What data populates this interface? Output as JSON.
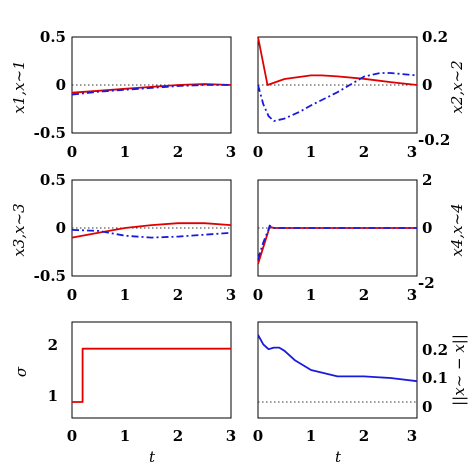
{
  "chart_data": [
    {
      "type": "line",
      "ylabel": "x1,x~1",
      "xlim": [
        0,
        3
      ],
      "ylim": [
        -0.5,
        0.5
      ],
      "xticks": [
        "0",
        "1",
        "2",
        "3"
      ],
      "yticks": [
        "0.5",
        "0",
        "-0.5"
      ],
      "series": [
        {
          "color": "#e00000",
          "dash": "solid",
          "x": [
            0,
            0.5,
            1,
            1.5,
            2,
            2.5,
            3
          ],
          "y": [
            -0.08,
            -0.06,
            -0.04,
            -0.02,
            0.0,
            0.01,
            0.0
          ]
        },
        {
          "color": "#1a1adf",
          "dash": "dashdot",
          "x": [
            0,
            0.5,
            1,
            1.5,
            2,
            2.5,
            3
          ],
          "y": [
            -0.1,
            -0.07,
            -0.05,
            -0.03,
            -0.01,
            0.0,
            0.0
          ]
        }
      ]
    },
    {
      "type": "line",
      "ylabel": "x2,x~2",
      "xlim": [
        0,
        3
      ],
      "ylim": [
        -0.2,
        0.2
      ],
      "xticks": [
        "0",
        "1",
        "2",
        "3"
      ],
      "yticks": [
        "0.2",
        "0",
        "-0.2"
      ],
      "series": [
        {
          "color": "#e00000",
          "dash": "solid",
          "x": [
            0,
            0.18,
            0.5,
            1,
            1.2,
            1.5,
            2,
            2.5,
            3
          ],
          "y": [
            0.2,
            0.0,
            0.025,
            0.04,
            0.04,
            0.036,
            0.026,
            0.012,
            0.0
          ]
        },
        {
          "color": "#1a1adf",
          "dash": "dashdot",
          "x": [
            0,
            0.1,
            0.2,
            0.3,
            0.5,
            0.8,
            1,
            1.5,
            2,
            2.3,
            2.5,
            3
          ],
          "y": [
            0.0,
            -0.08,
            -0.13,
            -0.15,
            -0.14,
            -0.11,
            -0.085,
            -0.03,
            0.035,
            0.05,
            0.05,
            0.04
          ]
        }
      ]
    },
    {
      "type": "line",
      "ylabel": "x3,x~3",
      "xlim": [
        0,
        3
      ],
      "ylim": [
        -0.5,
        0.5
      ],
      "xticks": [
        "0",
        "1",
        "2",
        "3"
      ],
      "yticks": [
        "0.5",
        "0",
        "-0.5"
      ],
      "series": [
        {
          "color": "#e00000",
          "dash": "solid",
          "x": [
            0,
            0.5,
            1,
            1.5,
            2,
            2.5,
            3
          ],
          "y": [
            -0.1,
            -0.05,
            0.0,
            0.03,
            0.05,
            0.05,
            0.03
          ]
        },
        {
          "color": "#1a1adf",
          "dash": "dashdot",
          "x": [
            0,
            0.5,
            1,
            1.5,
            2,
            2.5,
            3
          ],
          "y": [
            -0.02,
            -0.03,
            -0.08,
            -0.1,
            -0.09,
            -0.07,
            -0.05
          ]
        }
      ]
    },
    {
      "type": "line",
      "ylabel": "x4,x~4",
      "xlim": [
        0,
        3
      ],
      "ylim": [
        -2,
        2
      ],
      "xticks": [
        "0",
        "1",
        "2",
        "3"
      ],
      "yticks": [
        "2",
        "0",
        "-2"
      ],
      "series": [
        {
          "color": "#e00000",
          "dash": "solid",
          "x": [
            0,
            0.1,
            0.2,
            0.22,
            0.3,
            1,
            2,
            3
          ],
          "y": [
            -1.5,
            -0.8,
            -0.1,
            0.05,
            0.0,
            0.0,
            0.0,
            0.0
          ]
        },
        {
          "color": "#1a1adf",
          "dash": "dashdot",
          "x": [
            0,
            0.1,
            0.2,
            0.22,
            0.3,
            1,
            2,
            3
          ],
          "y": [
            -1.3,
            -0.6,
            -0.05,
            0.1,
            0.0,
            0.0,
            0.0,
            0.0
          ]
        }
      ]
    },
    {
      "type": "line",
      "xlabel": "t",
      "ylabel": "σ",
      "xlim": [
        0,
        3
      ],
      "ylim": [
        0.7,
        2.5
      ],
      "xticks": [
        "0",
        "1",
        "2",
        "3"
      ],
      "yticks": [
        "2",
        "1"
      ],
      "ytick_values": [
        2,
        1
      ],
      "series": [
        {
          "color": "#e00000",
          "dash": "solid",
          "x": [
            0,
            0.2,
            0.2,
            3
          ],
          "y": [
            1,
            1,
            2,
            2
          ]
        }
      ]
    },
    {
      "type": "line",
      "xlabel": "t",
      "ylabel": "||x~ − x||",
      "xlim": [
        0,
        3
      ],
      "ylim": [
        -0.05,
        0.25
      ],
      "xticks": [
        "0",
        "1",
        "2",
        "3"
      ],
      "yticks": [
        "0.2",
        "0.1",
        "0"
      ],
      "ytick_values": [
        0.2,
        0.1,
        0
      ],
      "series": [
        {
          "color": "#1a1adf",
          "dash": "solid",
          "x": [
            0,
            0.1,
            0.2,
            0.3,
            0.4,
            0.5,
            0.7,
            1,
            1.5,
            2,
            2.5,
            3
          ],
          "y": [
            0.21,
            0.18,
            0.165,
            0.17,
            0.17,
            0.16,
            0.13,
            0.1,
            0.08,
            0.08,
            0.075,
            0.065
          ]
        }
      ]
    }
  ]
}
